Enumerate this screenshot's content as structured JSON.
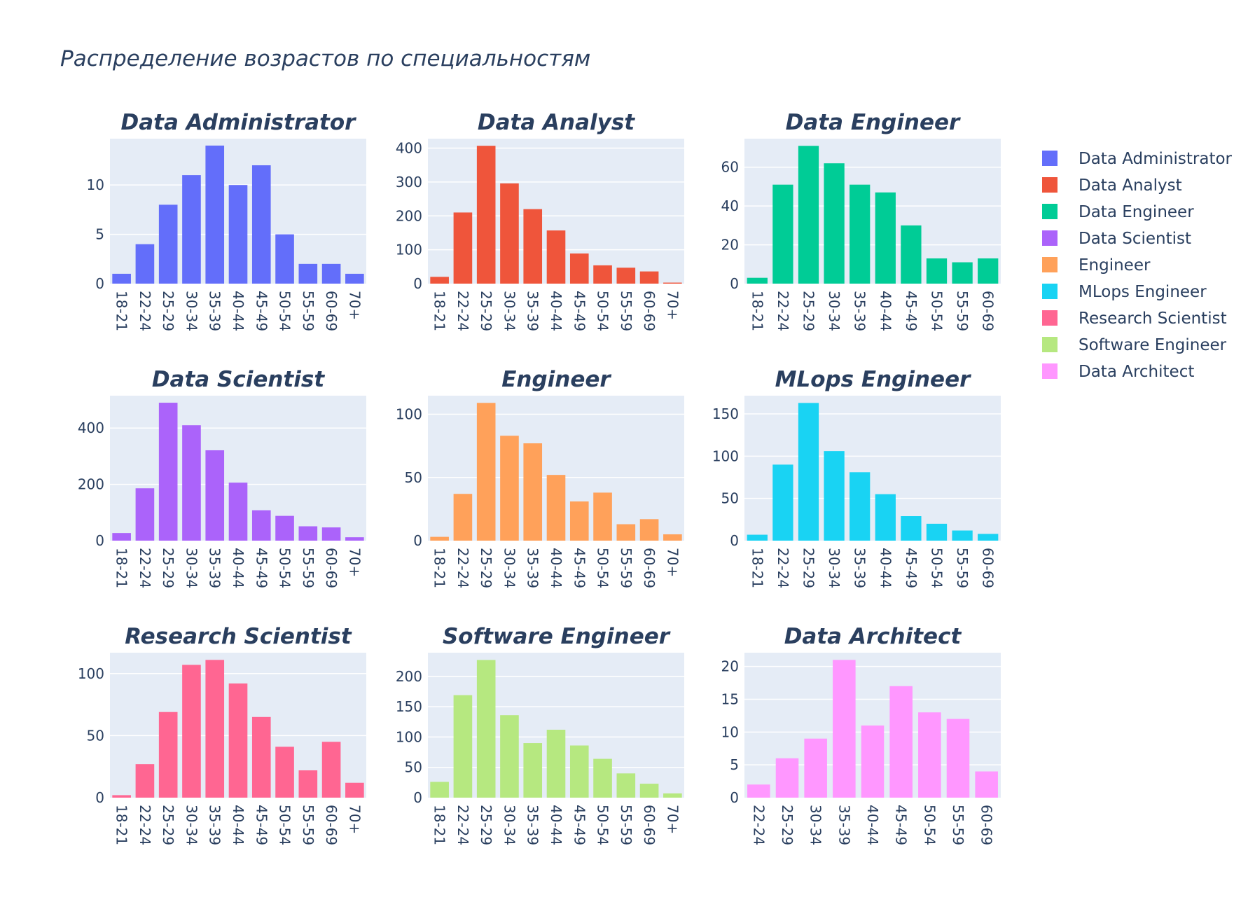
{
  "title": "Распределение возрастов по специальностям",
  "legend_position": "right",
  "grid": true,
  "legend": [
    {
      "name": "Data Administrator",
      "color": "#636efa"
    },
    {
      "name": "Data Analyst",
      "color": "#ef553b"
    },
    {
      "name": "Data Engineer",
      "color": "#00cc96"
    },
    {
      "name": "Data Scientist",
      "color": "#ab63fa"
    },
    {
      "name": "Engineer",
      "color": "#ffa15a"
    },
    {
      "name": "MLops Engineer",
      "color": "#19d3f3"
    },
    {
      "name": "Research Scientist",
      "color": "#ff6692"
    },
    {
      "name": "Software Engineer",
      "color": "#b6e880"
    },
    {
      "name": "Data Architect",
      "color": "#ff97ff"
    }
  ],
  "chart_data": [
    {
      "type": "bar",
      "title": "Data Administrator",
      "color": "#636efa",
      "categories": [
        "18-21",
        "22-24",
        "25-29",
        "30-34",
        "35-39",
        "40-44",
        "45-49",
        "50-54",
        "55-59",
        "60-69",
        "70+"
      ],
      "values": [
        1,
        4,
        8,
        11,
        14,
        10,
        12,
        5,
        2,
        2,
        1
      ],
      "ylim": [
        0,
        14.7
      ],
      "yticks": [
        0,
        5,
        10
      ]
    },
    {
      "type": "bar",
      "title": "Data Analyst",
      "color": "#ef553b",
      "categories": [
        "18-21",
        "22-24",
        "25-29",
        "30-34",
        "35-39",
        "40-44",
        "45-49",
        "50-54",
        "55-59",
        "60-69",
        "70+"
      ],
      "values": [
        20,
        210,
        407,
        296,
        220,
        157,
        89,
        54,
        47,
        36,
        3
      ],
      "ylim": [
        0,
        428
      ],
      "yticks": [
        0,
        100,
        200,
        300,
        400
      ]
    },
    {
      "type": "bar",
      "title": "Data Engineer",
      "color": "#00cc96",
      "categories": [
        "18-21",
        "22-24",
        "25-29",
        "30-34",
        "35-39",
        "40-44",
        "45-49",
        "50-54",
        "55-59",
        "60-69"
      ],
      "values": [
        3,
        51,
        71,
        62,
        51,
        47,
        30,
        13,
        11,
        13
      ],
      "ylim": [
        0,
        74.7
      ],
      "yticks": [
        0,
        20,
        40,
        60
      ]
    },
    {
      "type": "bar",
      "title": "Data Scientist",
      "color": "#ab63fa",
      "categories": [
        "18-21",
        "22-24",
        "25-29",
        "30-34",
        "35-39",
        "40-44",
        "45-49",
        "50-54",
        "55-59",
        "60-69",
        "70+"
      ],
      "values": [
        27,
        186,
        490,
        410,
        321,
        206,
        108,
        88,
        51,
        47,
        12
      ],
      "ylim": [
        0,
        515
      ],
      "yticks": [
        0,
        200,
        400
      ]
    },
    {
      "type": "bar",
      "title": "Engineer",
      "color": "#ffa15a",
      "categories": [
        "18-21",
        "22-24",
        "25-29",
        "30-34",
        "35-39",
        "40-44",
        "45-49",
        "50-54",
        "55-59",
        "60-69",
        "70+"
      ],
      "values": [
        3,
        37,
        109,
        83,
        77,
        52,
        31,
        38,
        13,
        17,
        5
      ],
      "ylim": [
        0,
        114.7
      ],
      "yticks": [
        0,
        50,
        100
      ]
    },
    {
      "type": "bar",
      "title": "MLops Engineer",
      "color": "#19d3f3",
      "categories": [
        "18-21",
        "22-24",
        "25-29",
        "30-34",
        "35-39",
        "40-44",
        "45-49",
        "50-54",
        "55-59",
        "60-69"
      ],
      "values": [
        7,
        90,
        163,
        106,
        81,
        55,
        29,
        20,
        12,
        8
      ],
      "ylim": [
        0,
        171.6
      ],
      "yticks": [
        0,
        50,
        100,
        150
      ]
    },
    {
      "type": "bar",
      "title": "Research Scientist",
      "color": "#ff6692",
      "categories": [
        "18-21",
        "22-24",
        "25-29",
        "30-34",
        "35-39",
        "40-44",
        "45-49",
        "50-54",
        "55-59",
        "60-69",
        "70+"
      ],
      "values": [
        2,
        27,
        69,
        107,
        111,
        92,
        65,
        41,
        22,
        45,
        12
      ],
      "ylim": [
        0,
        116.8
      ],
      "yticks": [
        0,
        50,
        100
      ]
    },
    {
      "type": "bar",
      "title": "Software Engineer",
      "color": "#b6e880",
      "categories": [
        "18-21",
        "22-24",
        "25-29",
        "30-34",
        "35-39",
        "40-44",
        "45-49",
        "50-54",
        "55-59",
        "60-69",
        "70+"
      ],
      "values": [
        26,
        169,
        227,
        136,
        90,
        112,
        86,
        64,
        40,
        23,
        7
      ],
      "ylim": [
        0,
        239
      ],
      "yticks": [
        0,
        50,
        100,
        150,
        200
      ]
    },
    {
      "type": "bar",
      "title": "Data Architect",
      "color": "#ff97ff",
      "categories": [
        "22-24",
        "25-29",
        "30-34",
        "35-39",
        "40-44",
        "45-49",
        "50-54",
        "55-59",
        "60-69"
      ],
      "values": [
        2,
        6,
        9,
        21,
        11,
        17,
        13,
        12,
        4
      ],
      "ylim": [
        0,
        22.1
      ],
      "yticks": [
        0,
        5,
        10,
        15,
        20
      ]
    }
  ]
}
